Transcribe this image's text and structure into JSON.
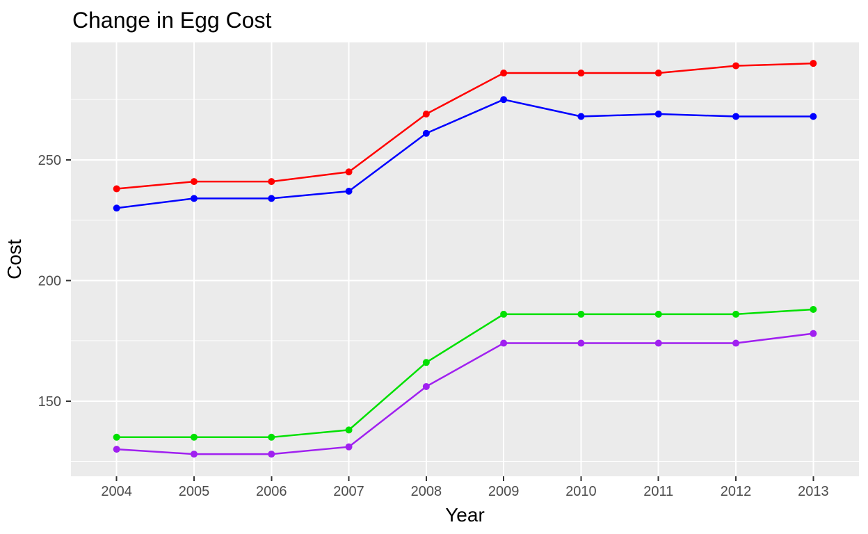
{
  "chart_data": {
    "type": "line",
    "title": "Change in Egg Cost",
    "xlabel": "Year",
    "ylabel": "Cost",
    "x": [
      2004,
      2005,
      2006,
      2007,
      2008,
      2009,
      2010,
      2011,
      2012,
      2013
    ],
    "series": [
      {
        "name": "red-series",
        "color": "#FF0000",
        "values": [
          238,
          241,
          241,
          245,
          269,
          286,
          286,
          286,
          289,
          290
        ]
      },
      {
        "name": "blue-series",
        "color": "#0000FF",
        "values": [
          230,
          234,
          234,
          237,
          261,
          275,
          268,
          269,
          268,
          268
        ]
      },
      {
        "name": "green-series",
        "color": "#00E000",
        "values": [
          135,
          135,
          135,
          138,
          166,
          186,
          186,
          186,
          186,
          188
        ]
      },
      {
        "name": "purple-series",
        "color": "#A020F0",
        "values": [
          130,
          128,
          128,
          131,
          156,
          174,
          174,
          174,
          174,
          178
        ]
      }
    ],
    "x_ticks": [
      2004,
      2005,
      2006,
      2007,
      2008,
      2009,
      2010,
      2011,
      2012,
      2013
    ],
    "y_major_ticks": [
      150,
      200,
      250
    ],
    "y_minor_ticks": [
      125,
      175,
      225,
      275
    ],
    "xlim": [
      2003.41,
      2013.59
    ],
    "ylim": [
      118.8,
      298.7
    ],
    "legend": "none",
    "grid": "on",
    "panel_background": "#EBEBEB",
    "grid_color": "#FFFFFF",
    "tick_color": "#333333",
    "tick_label_color": "#4D4D4D",
    "marker": "circle",
    "marker_radius": 5,
    "line_width": 2.5
  }
}
